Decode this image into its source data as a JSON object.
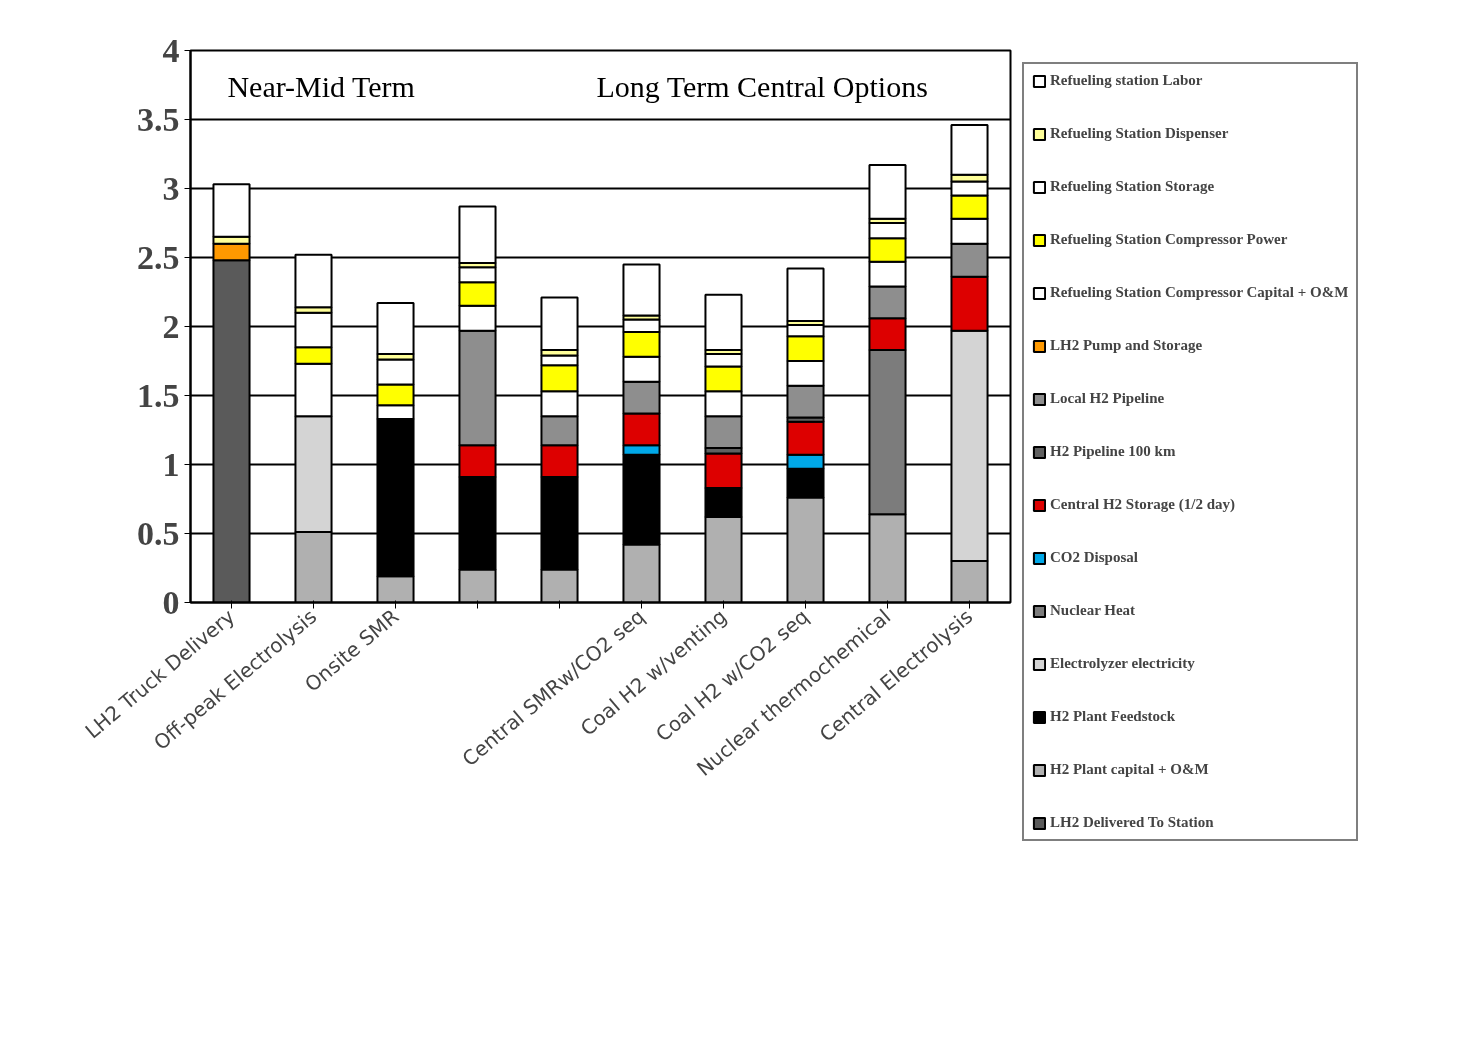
{
  "chart_data": {
    "type": "bar",
    "stacked": true,
    "categories": [
      "LH2 Truck Delivery",
      "Off-peak Electrolysis",
      "Onsite SMR",
      null,
      null,
      "Central SMRw/CO2 seq",
      "Coal H2 w/venting",
      "Coal H2 w/CO2 seq",
      "Nuclear thermochemical",
      "Central Electrolysis"
    ],
    "series": [
      {
        "name": "LH2 Delivered To Station",
        "color": "#5a5a5a",
        "values": [
          2.48,
          0,
          0,
          0,
          0,
          0,
          0,
          0,
          0,
          0
        ]
      },
      {
        "name": "H2 Plant capital + O&M",
        "color": "#b0b0b0",
        "values": [
          0,
          0.51,
          0.19,
          0.24,
          0.24,
          0.42,
          0.62,
          0.76,
          0.64,
          0.3
        ]
      },
      {
        "name": "H2 Plant Feedstock",
        "color": "#000000",
        "values": [
          0,
          0,
          1.14,
          0.67,
          0.67,
          0.65,
          0.21,
          0.21,
          0,
          0
        ]
      },
      {
        "name": "Electrolyzer electricity",
        "color": "#d4d4d4",
        "values": [
          0,
          0.84,
          0,
          0,
          0,
          0,
          0,
          0,
          0,
          1.67
        ]
      },
      {
        "name": "Nuclear Heat",
        "color": "#7c7c7c",
        "values": [
          0,
          0,
          0,
          0,
          0,
          0,
          0,
          0,
          1.19,
          0
        ]
      },
      {
        "name": "CO2 Disposal",
        "color": "#00a8e8",
        "values": [
          0,
          0,
          0,
          0,
          0,
          0.07,
          0,
          0.1,
          0,
          0
        ]
      },
      {
        "name": "Central H2 Storage (1/2 day)",
        "color": "#dd0000",
        "values": [
          0,
          0,
          0,
          0.23,
          0.23,
          0.23,
          0.25,
          0.24,
          0.23,
          0.39
        ]
      },
      {
        "name": "H2 Pipeline 100 km",
        "color": "#606060",
        "values": [
          0,
          0,
          0,
          0,
          0,
          0,
          0.04,
          0.03,
          0,
          0
        ]
      },
      {
        "name": "Local H2 Pipeline",
        "color": "#8e8e8e",
        "values": [
          0,
          0,
          0,
          0.83,
          0.21,
          0.23,
          0.23,
          0.23,
          0.23,
          0.24
        ]
      },
      {
        "name": "LH2 Pump and Storage",
        "color": "#ff9900",
        "values": [
          0.12,
          0,
          0,
          0,
          0,
          0,
          0,
          0,
          0,
          0
        ]
      },
      {
        "name": "Refueling Station Compressor Capital + O&M",
        "color": "#ffffff",
        "values": [
          0,
          0.38,
          0.1,
          0.18,
          0.18,
          0.18,
          0.18,
          0.18,
          0.18,
          0.18
        ]
      },
      {
        "name": "Refueling Station Compressor Power",
        "color": "#ffff00",
        "values": [
          0,
          0.12,
          0.15,
          0.17,
          0.19,
          0.18,
          0.18,
          0.18,
          0.17,
          0.17
        ]
      },
      {
        "name": "Refueling Station Storage",
        "color": "#ffffff",
        "values": [
          0,
          0.25,
          0.18,
          0.11,
          0.07,
          0.09,
          0.09,
          0.08,
          0.11,
          0.1
        ]
      },
      {
        "name": "Refueling Station Dispenser",
        "color": "#ffff99",
        "values": [
          0.05,
          0.04,
          0.04,
          0.03,
          0.04,
          0.03,
          0.03,
          0.03,
          0.03,
          0.05
        ]
      },
      {
        "name": "Refueling station Labor",
        "color": "#ffffff",
        "values": [
          0.38,
          0.38,
          0.37,
          0.41,
          0.38,
          0.37,
          0.4,
          0.38,
          0.39,
          0.36
        ]
      }
    ],
    "ylim": [
      0,
      4
    ],
    "yticks": [
      0,
      0.5,
      1,
      1.5,
      2,
      2.5,
      3,
      3.5,
      4
    ],
    "grid": "y",
    "legend": "right",
    "annotations": [
      "Near-Mid Term",
      "Long Term Central Options"
    ]
  }
}
